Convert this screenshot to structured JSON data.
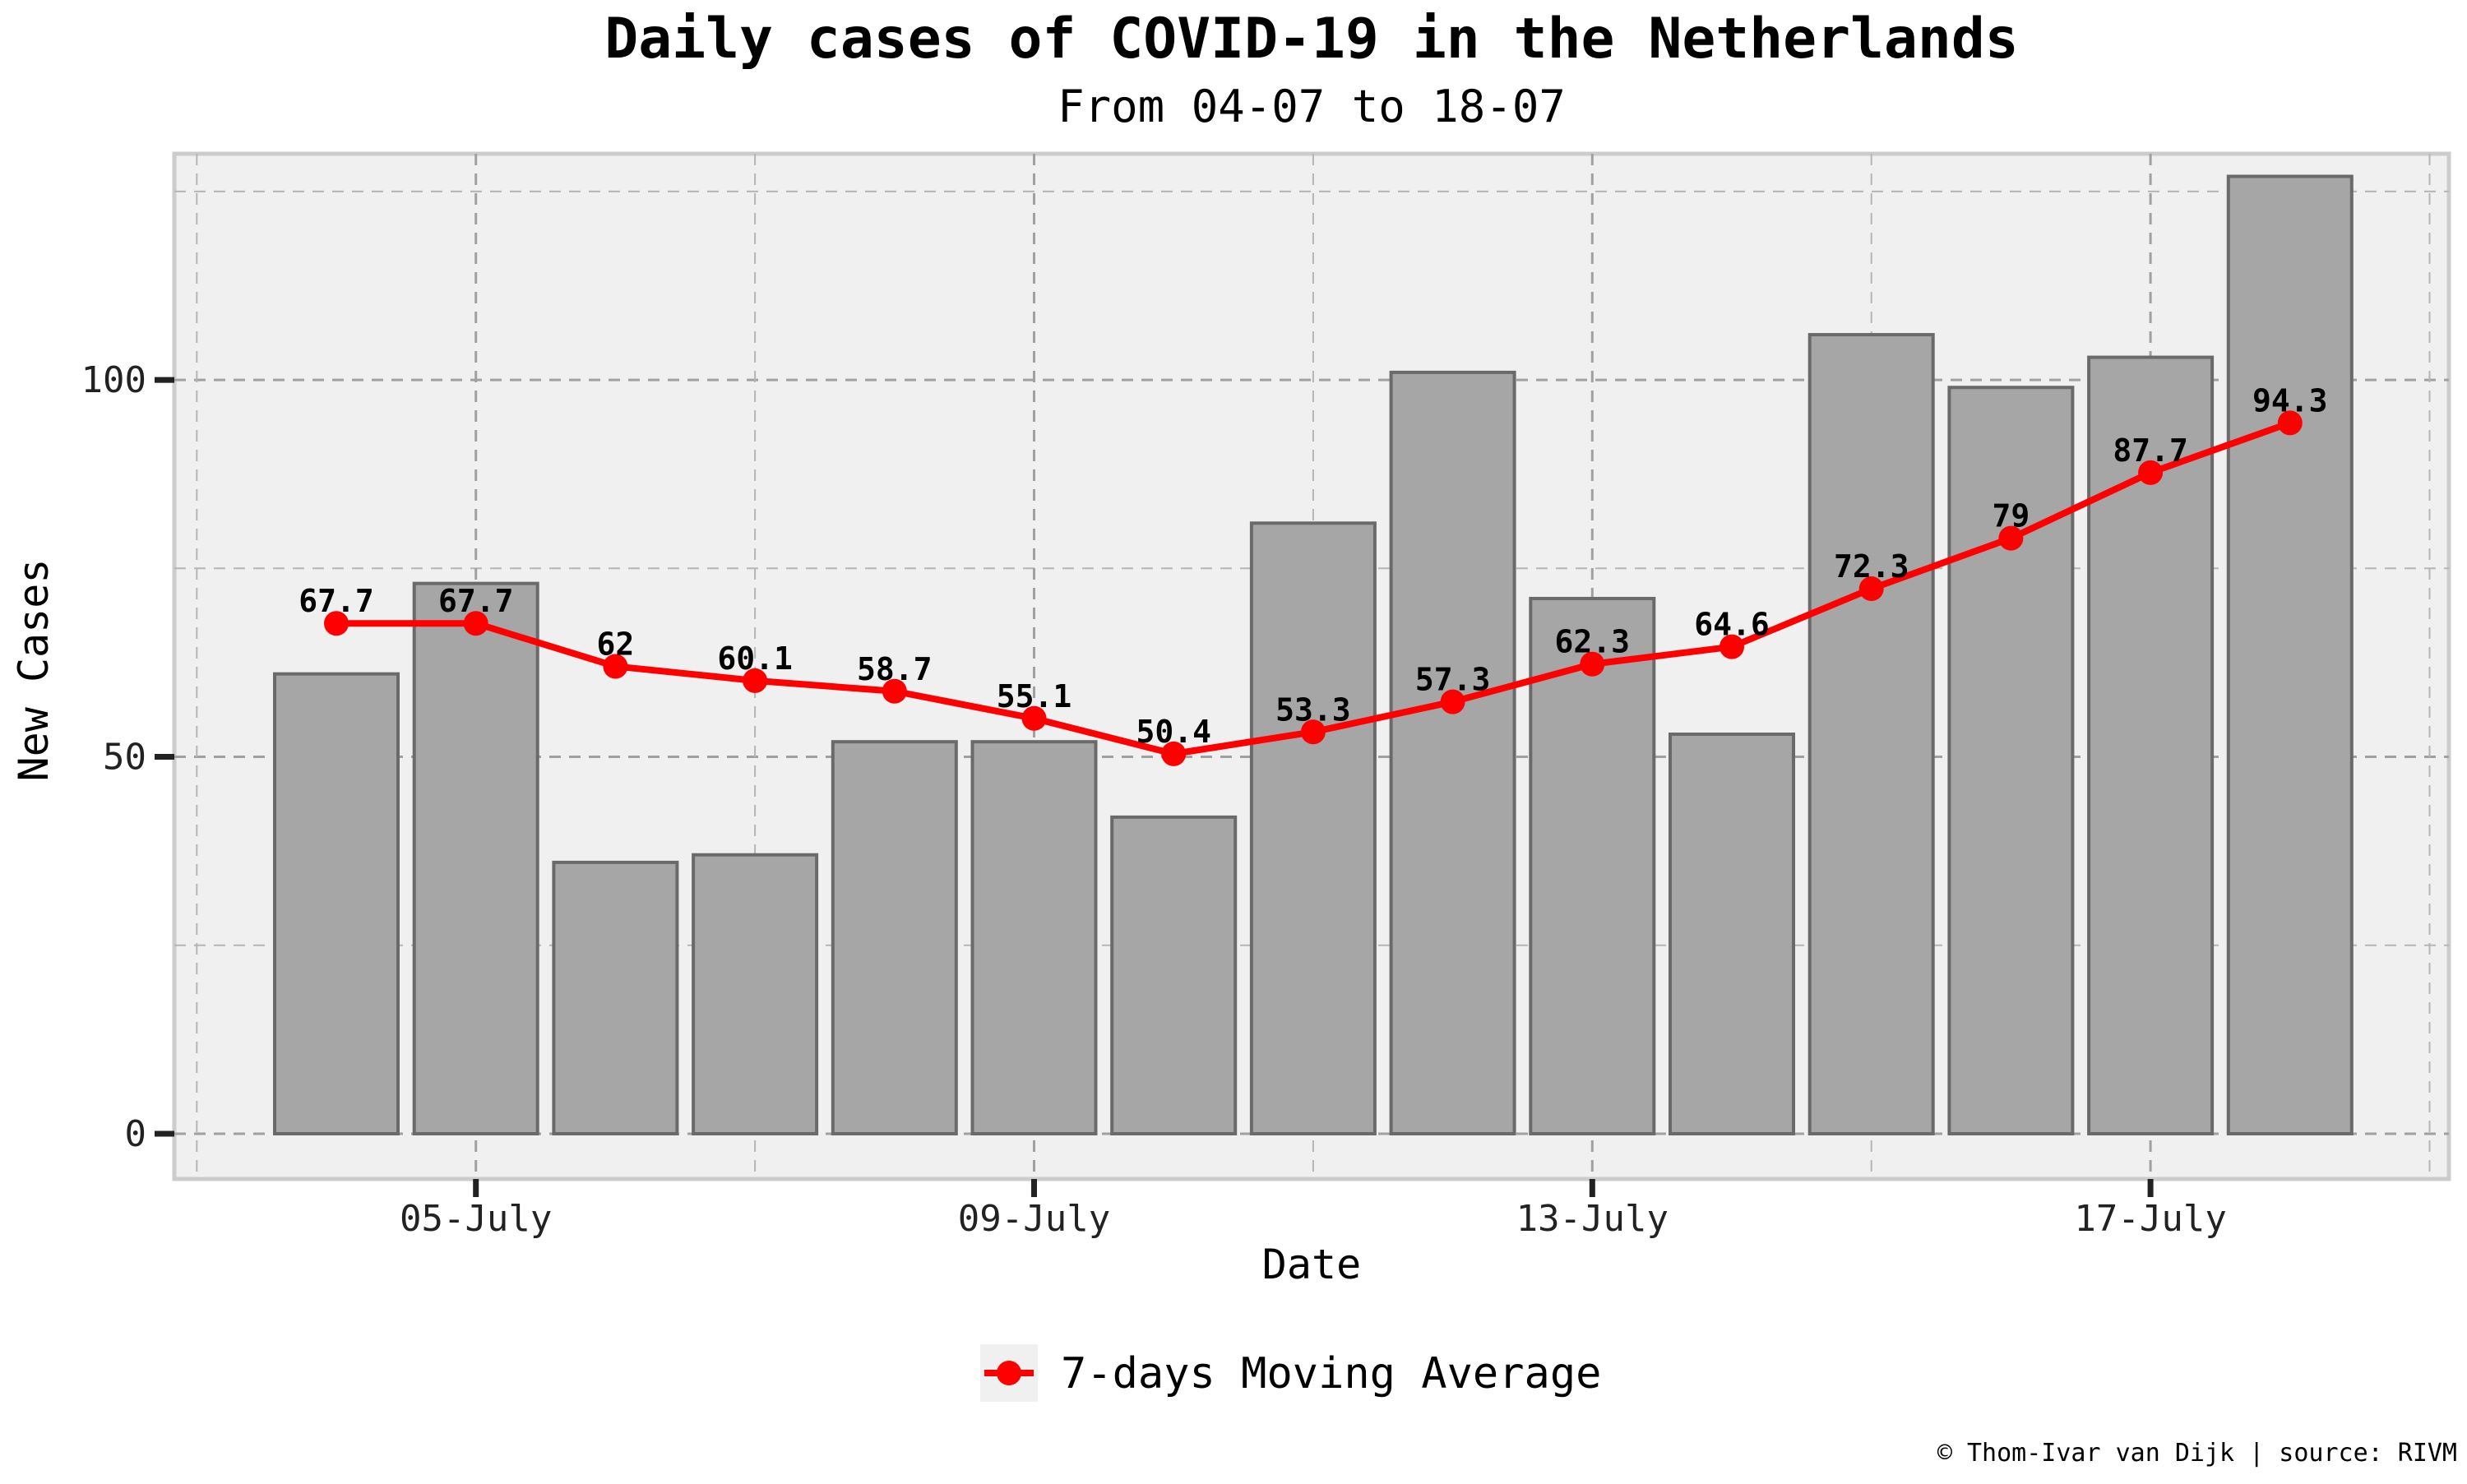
{
  "chart_data": {
    "type": "bar",
    "title": "Daily cases of COVID-19 in the Netherlands",
    "subtitle": "From 04-07 to 18-07",
    "xlabel": "Date",
    "ylabel": "New Cases",
    "ylim": [
      -6,
      130
    ],
    "yticks": [
      0,
      50,
      100
    ],
    "xtick_labels": [
      "05-July",
      "09-July",
      "13-July",
      "17-July"
    ],
    "xtick_index": [
      1,
      5,
      9,
      13
    ],
    "categories": [
      "04-07",
      "05-07",
      "06-07",
      "07-07",
      "08-07",
      "09-07",
      "10-07",
      "11-07",
      "12-07",
      "13-07",
      "14-07",
      "15-07",
      "16-07",
      "17-07",
      "18-07"
    ],
    "series": [
      {
        "name": "New Cases",
        "type": "bar",
        "color": "#a6a6a6",
        "values": [
          61,
          73,
          36,
          37,
          52,
          52,
          42,
          81,
          101,
          71,
          53,
          106,
          99,
          103,
          127
        ]
      },
      {
        "name": "7-days Moving Average",
        "type": "line",
        "color": "#ff0000",
        "values": [
          67.7,
          67.7,
          62,
          60.1,
          58.7,
          55.1,
          50.4,
          53.3,
          57.3,
          62.3,
          64.6,
          72.3,
          79,
          87.7,
          94.3
        ],
        "labels": [
          "67.7",
          "67.7",
          "62",
          "60.1",
          "58.7",
          "55.1",
          "50.4",
          "53.3",
          "57.3",
          "62.3",
          "64.6",
          "72.3",
          "79",
          "87.7",
          "94.3"
        ]
      }
    ],
    "legend": {
      "position": "bottom",
      "label": "7-days Moving Average"
    },
    "grid": true,
    "caption": "© Thom-Ivar van Dijk | source: RIVM"
  }
}
